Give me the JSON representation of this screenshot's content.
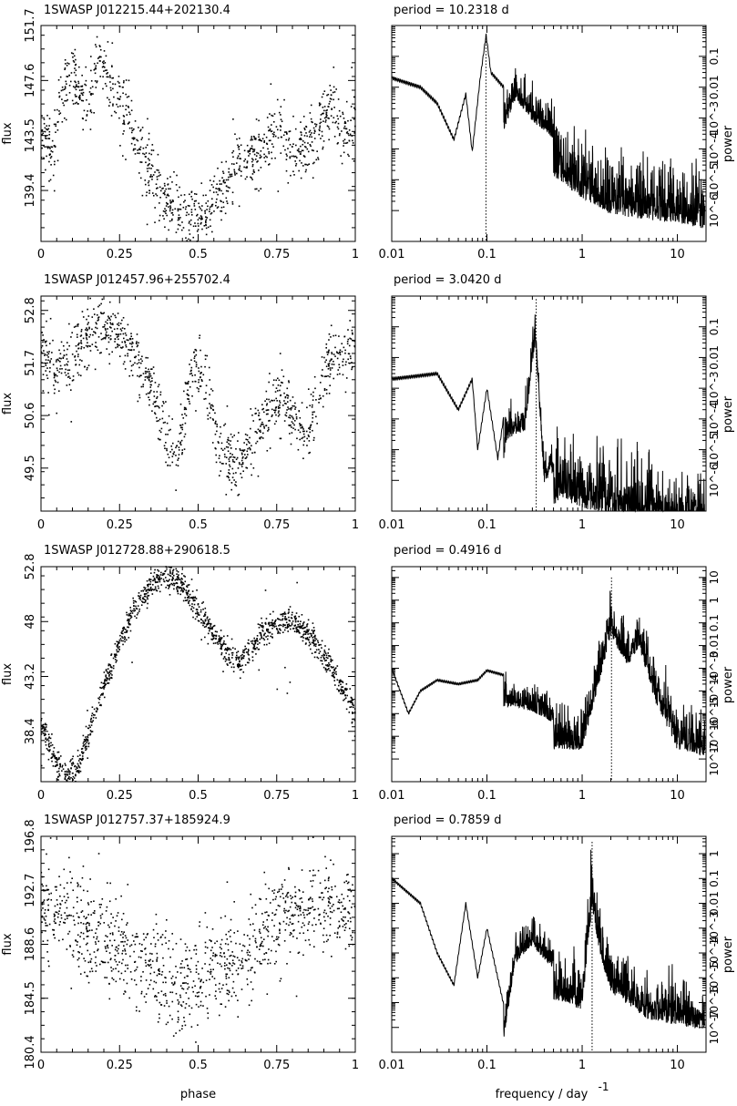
{
  "chart_data": [
    {
      "type": "scatter",
      "title": "1SWASP J012215.44+202130.4",
      "xlabel": "",
      "ylabel": "flux",
      "xlim": [
        0,
        1
      ],
      "ylim": [
        135.6,
        151.7
      ],
      "xticks": [
        "0",
        "0.25",
        "0.5",
        "0.75",
        "1"
      ],
      "yticks": [
        "139.4",
        "143.5",
        "147.6",
        "151.7"
      ],
      "yticks_values": [
        139.4,
        143.5,
        147.6,
        151.7
      ],
      "points": [
        [
          0.0,
          144
        ],
        [
          0.02,
          143
        ],
        [
          0.04,
          142
        ],
        [
          0.06,
          146
        ],
        [
          0.08,
          147
        ],
        [
          0.1,
          148
        ],
        [
          0.12,
          146.8
        ],
        [
          0.15,
          145.5
        ],
        [
          0.18,
          149.5
        ],
        [
          0.2,
          148.5
        ],
        [
          0.22,
          147
        ],
        [
          0.25,
          146
        ],
        [
          0.28,
          145
        ],
        [
          0.3,
          142.5
        ],
        [
          0.33,
          141.5
        ],
        [
          0.36,
          140
        ],
        [
          0.4,
          138.5
        ],
        [
          0.43,
          137.8
        ],
        [
          0.46,
          137
        ],
        [
          0.5,
          137.5
        ],
        [
          0.53,
          137.8
        ],
        [
          0.56,
          139
        ],
        [
          0.6,
          140
        ],
        [
          0.63,
          142
        ],
        [
          0.66,
          141.5
        ],
        [
          0.7,
          142.5
        ],
        [
          0.73,
          143
        ],
        [
          0.76,
          144
        ],
        [
          0.8,
          142
        ],
        [
          0.83,
          142.5
        ],
        [
          0.86,
          143
        ],
        [
          0.9,
          145
        ],
        [
          0.93,
          146
        ],
        [
          0.96,
          143.5
        ],
        [
          1.0,
          144
        ]
      ]
    },
    {
      "type": "line",
      "title": "period =   10.2318  d",
      "xlabel": "",
      "ylabel": "power",
      "log": true,
      "xlim": [
        0.01,
        20
      ],
      "xticks": [
        "0.01",
        "0.1",
        "1",
        "10"
      ],
      "yticks": [
        "10^-6",
        "10^-5",
        "10^-4",
        "10^-3",
        "0.01",
        "0.1"
      ],
      "yticks_values": [
        1e-06,
        1e-05,
        0.0001,
        0.001,
        0.01,
        0.1
      ],
      "ylim": [
        1e-07,
        1
      ],
      "period_frequency": 0.0977,
      "peaks": [
        [
          0.01,
          0.02
        ],
        [
          0.02,
          0.01
        ],
        [
          0.03,
          0.003
        ],
        [
          0.045,
          0.0002
        ],
        [
          0.06,
          0.006
        ],
        [
          0.07,
          8e-05
        ],
        [
          0.085,
          0.02
        ],
        [
          0.098,
          0.5
        ],
        [
          0.11,
          0.03
        ],
        [
          0.15,
          0.01
        ],
        [
          0.2,
          0.1
        ],
        [
          0.3,
          0.02
        ],
        [
          0.5,
          0.005
        ],
        [
          1,
          0.001
        ],
        [
          2,
          0.0003
        ],
        [
          5,
          0.0002
        ],
        [
          10,
          0.00015
        ],
        [
          20,
          0.0001
        ]
      ]
    },
    {
      "type": "scatter",
      "title": "1SWASP J012457.96+255702.4",
      "xlabel": "",
      "ylabel": "flux",
      "xlim": [
        0,
        1
      ],
      "ylim": [
        48.6,
        53.1
      ],
      "xticks": [
        "0",
        "0.25",
        "0.5",
        "0.75",
        "1"
      ],
      "yticks": [
        "49.5",
        "50.6",
        "51.7",
        "52.8"
      ],
      "yticks_values": [
        49.5,
        50.6,
        51.7,
        52.8
      ],
      "points": [
        [
          0.0,
          52
        ],
        [
          0.05,
          51.5
        ],
        [
          0.1,
          51.8
        ],
        [
          0.15,
          52.3
        ],
        [
          0.2,
          52.5
        ],
        [
          0.25,
          52.2
        ],
        [
          0.3,
          51.8
        ],
        [
          0.35,
          51.2
        ],
        [
          0.4,
          50.2
        ],
        [
          0.43,
          49.7
        ],
        [
          0.48,
          51.5
        ],
        [
          0.52,
          51.5
        ],
        [
          0.56,
          50
        ],
        [
          0.6,
          49.6
        ],
        [
          0.65,
          49.8
        ],
        [
          0.7,
          50.5
        ],
        [
          0.75,
          51
        ],
        [
          0.8,
          50.6
        ],
        [
          0.85,
          50.2
        ],
        [
          0.9,
          51.5
        ],
        [
          0.95,
          51.9
        ],
        [
          1.0,
          52
        ]
      ]
    },
    {
      "type": "line",
      "title": "period =     3.0420  d",
      "xlabel": "",
      "ylabel": "power",
      "log": true,
      "xlim": [
        0.01,
        20
      ],
      "xticks": [
        "0.01",
        "0.1",
        "1",
        "10"
      ],
      "yticks": [
        "10^-6",
        "10^-5",
        "10^-4",
        "10^-3",
        "0.01",
        "0.1"
      ],
      "yticks_values": [
        1e-06,
        1e-05,
        0.0001,
        0.001,
        0.01,
        0.1
      ],
      "ylim": [
        1e-07,
        1
      ],
      "period_frequency": 0.329,
      "peaks": [
        [
          0.01,
          0.002
        ],
        [
          0.03,
          0.003
        ],
        [
          0.05,
          0.0002
        ],
        [
          0.07,
          0.002
        ],
        [
          0.08,
          1e-05
        ],
        [
          0.1,
          0.001
        ],
        [
          0.13,
          5e-06
        ],
        [
          0.16,
          0.0005
        ],
        [
          0.2,
          0.0008
        ],
        [
          0.25,
          0.001
        ],
        [
          0.32,
          0.8
        ],
        [
          0.4,
          2e-05
        ],
        [
          0.6,
          0.0001
        ],
        [
          1,
          5e-05
        ],
        [
          2,
          3e-05
        ],
        [
          5,
          2e-05
        ],
        [
          10,
          1e-05
        ],
        [
          20,
          1e-05
        ]
      ]
    },
    {
      "type": "scatter",
      "title": "1SWASP J012728.88+290618.5",
      "xlabel": "",
      "ylabel": "flux",
      "xlim": [
        0,
        1
      ],
      "ylim": [
        34.0,
        52.8
      ],
      "xticks": [
        "0",
        "0.25",
        "0.5",
        "0.75",
        "1"
      ],
      "yticks": [
        "38.4",
        "43.2",
        "48",
        "52.8"
      ],
      "yticks_values": [
        38.4,
        43.2,
        48,
        52.8
      ],
      "points": [
        [
          0.0,
          39
        ],
        [
          0.03,
          36.8
        ],
        [
          0.06,
          35.2
        ],
        [
          0.09,
          34.6
        ],
        [
          0.12,
          35.5
        ],
        [
          0.15,
          38
        ],
        [
          0.2,
          42.5
        ],
        [
          0.25,
          46
        ],
        [
          0.3,
          49.2
        ],
        [
          0.35,
          51.2
        ],
        [
          0.4,
          52
        ],
        [
          0.45,
          51.2
        ],
        [
          0.5,
          49
        ],
        [
          0.55,
          46.8
        ],
        [
          0.6,
          45
        ],
        [
          0.63,
          44.5
        ],
        [
          0.67,
          45.6
        ],
        [
          0.7,
          46.8
        ],
        [
          0.75,
          47.8
        ],
        [
          0.8,
          48
        ],
        [
          0.85,
          47
        ],
        [
          0.9,
          45
        ],
        [
          0.95,
          42.5
        ],
        [
          1.0,
          40
        ]
      ]
    },
    {
      "type": "line",
      "title": "period =     0.4916  d",
      "xlabel": "",
      "ylabel": "power",
      "log": true,
      "xlim": [
        0.01,
        20
      ],
      "xticks": [
        "0.01",
        "0.1",
        "1",
        "10"
      ],
      "yticks": [
        "10^-7",
        "10^-6",
        "10^-5",
        "10^-4",
        "10^-3",
        "0.01",
        "0.1",
        "1",
        "10"
      ],
      "yticks_values": [
        1e-07,
        1e-06,
        1e-05,
        0.0001,
        0.001,
        0.01,
        0.1,
        1,
        10
      ],
      "ylim": [
        1e-08,
        30
      ],
      "period_frequency": 2.034,
      "peaks": [
        [
          0.01,
          0.001
        ],
        [
          0.015,
          1e-05
        ],
        [
          0.02,
          0.0001
        ],
        [
          0.03,
          0.0003
        ],
        [
          0.05,
          0.0002
        ],
        [
          0.08,
          0.0003
        ],
        [
          0.1,
          0.0008
        ],
        [
          0.15,
          0.0005
        ],
        [
          0.2,
          0.0005
        ],
        [
          0.3,
          0.0003
        ],
        [
          0.5,
          0.0001
        ],
        [
          1,
          0.0001
        ],
        [
          2,
          10
        ],
        [
          3,
          0.5
        ],
        [
          4,
          3
        ],
        [
          6,
          0.01
        ],
        [
          10,
          0.0001
        ],
        [
          20,
          5e-05
        ]
      ]
    },
    {
      "type": "scatter",
      "title": "1SWASP J012757.37+185924.9",
      "xlabel": "phase",
      "ylabel": "flux",
      "xlim": [
        0,
        1
      ],
      "ylim": [
        180.4,
        196.8
      ],
      "xticks": [
        "0",
        "0.25",
        "0.5",
        "0.75",
        "1"
      ],
      "yticks": [
        "180.4",
        "184.5",
        "188.6",
        "192.7",
        "196.8"
      ],
      "yticks_values": [
        180.4,
        184.5,
        188.6,
        192.7,
        196.8
      ],
      "points": [
        [
          0.0,
          191
        ],
        [
          0.05,
          191.5
        ],
        [
          0.1,
          190.5
        ],
        [
          0.15,
          189.5
        ],
        [
          0.2,
          188.8
        ],
        [
          0.25,
          188
        ],
        [
          0.3,
          187.2
        ],
        [
          0.35,
          186.5
        ],
        [
          0.4,
          186
        ],
        [
          0.45,
          185.5
        ],
        [
          0.5,
          185.8
        ],
        [
          0.55,
          186.3
        ],
        [
          0.6,
          187
        ],
        [
          0.65,
          188
        ],
        [
          0.7,
          189.2
        ],
        [
          0.75,
          190.2
        ],
        [
          0.8,
          191
        ],
        [
          0.85,
          191.5
        ],
        [
          0.9,
          191.8
        ],
        [
          0.95,
          191.6
        ],
        [
          1.0,
          191.2
        ]
      ]
    },
    {
      "type": "line",
      "title": "period =     0.7859  d",
      "xlabel": "frequency  /  day",
      "xlabel_superscript": "-1",
      "ylabel": "power",
      "log": true,
      "xlim": [
        0.01,
        20
      ],
      "xticks": [
        "0.01",
        "0.1",
        "1",
        "10"
      ],
      "yticks": [
        "10^-7",
        "10^-6",
        "10^-5",
        "10^-4",
        "10^-3",
        "0.01",
        "0.1",
        "1"
      ],
      "yticks_values": [
        1e-07,
        1e-06,
        1e-05,
        0.0001,
        0.001,
        0.01,
        0.1,
        1
      ],
      "ylim": [
        1e-08,
        5
      ],
      "period_frequency": 1.272,
      "peaks": [
        [
          0.01,
          0.1
        ],
        [
          0.02,
          0.01
        ],
        [
          0.03,
          0.0001
        ],
        [
          0.045,
          5e-06
        ],
        [
          0.06,
          0.01
        ],
        [
          0.08,
          1e-05
        ],
        [
          0.1,
          0.001
        ],
        [
          0.15,
          8e-07
        ],
        [
          0.2,
          0.001
        ],
        [
          0.3,
          0.005
        ],
        [
          0.5,
          0.0005
        ],
        [
          1,
          0.0002
        ],
        [
          1.27,
          3
        ],
        [
          1.5,
          0.05
        ],
        [
          2,
          0.001
        ],
        [
          5,
          8e-05
        ],
        [
          10,
          5e-05
        ],
        [
          20,
          3e-05
        ]
      ]
    }
  ]
}
